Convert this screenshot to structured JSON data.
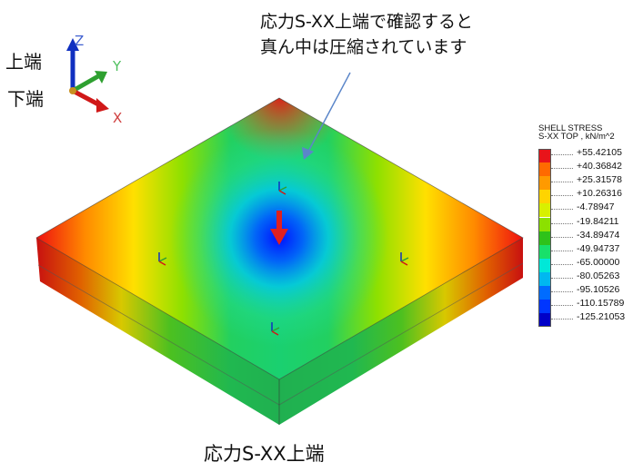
{
  "annotation": {
    "line1": "応力S-XX上端で確認すると",
    "line2": "真ん中は圧縮されています"
  },
  "axis_labels": {
    "z": "Z",
    "y": "Y",
    "x": "X",
    "top": "上端",
    "bottom": "下端"
  },
  "caption": "応力S-XX上端",
  "legend": {
    "title_line1": "SHELL STRESS",
    "title_line2": "S-XX TOP , kN/m^2",
    "values": [
      "+55.42105",
      "+40.36842",
      "+25.31578",
      "+10.26316",
      "-4.78947",
      "-19.84211",
      "-34.89474",
      "-49.94737",
      "-65.00000",
      "-80.05263",
      "-95.10526",
      "-110.15789",
      "-125.21053"
    ],
    "colors": [
      "#e8141a",
      "#ff6a00",
      "#ff9a00",
      "#ffd400",
      "#d8f000",
      "#8ce000",
      "#2ec21a",
      "#18e06a",
      "#00e8d8",
      "#00b8f0",
      "#006cff",
      "#0036ff",
      "#0000c8"
    ]
  },
  "colors": {
    "arrow_red": "#e02020",
    "pointer_blue": "#5b86c9",
    "axis_z": "#1030c0",
    "axis_y": "#2ea030",
    "axis_x": "#d01818"
  }
}
